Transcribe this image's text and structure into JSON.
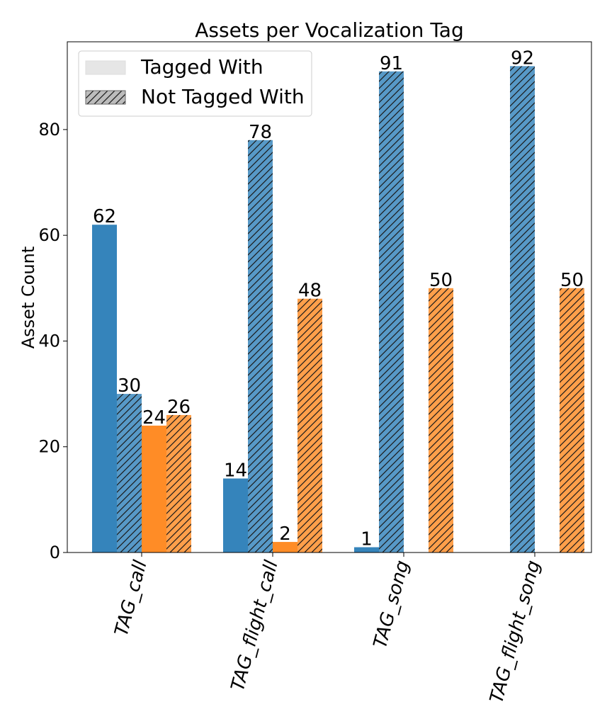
{
  "chart_data": {
    "type": "bar",
    "title": "Assets per Vocalization Tag",
    "xlabel": "",
    "ylabel": "Asset Count",
    "categories": [
      "TAG_call",
      "TAG_flight_call",
      "TAG_song",
      "TAG_flight_song"
    ],
    "ylim": [
      0,
      96.6
    ],
    "yticks": [
      0,
      20,
      40,
      60,
      80
    ],
    "grid": false,
    "legend": {
      "placement": "top-left",
      "entries": [
        {
          "label": "Tagged With",
          "hatch": false
        },
        {
          "label": "Not Tagged With",
          "hatch": true
        }
      ]
    },
    "series": [
      {
        "color": "#1f77b4",
        "hatch": false,
        "values": [
          62,
          14,
          1,
          0
        ]
      },
      {
        "color": "#1f77b4",
        "hatch": true,
        "values": [
          30,
          78,
          91,
          92
        ]
      },
      {
        "color": "#ff7f0e",
        "hatch": false,
        "values": [
          24,
          2,
          0,
          0
        ]
      },
      {
        "color": "#ff7f0e",
        "hatch": true,
        "values": [
          26,
          48,
          50,
          50
        ]
      }
    ],
    "data_labels": [
      [
        "62",
        "14",
        "1",
        ""
      ],
      [
        "30",
        "78",
        "91",
        "92"
      ],
      [
        "24",
        "2",
        "",
        ""
      ],
      [
        "26",
        "48",
        "50",
        "50"
      ]
    ]
  }
}
